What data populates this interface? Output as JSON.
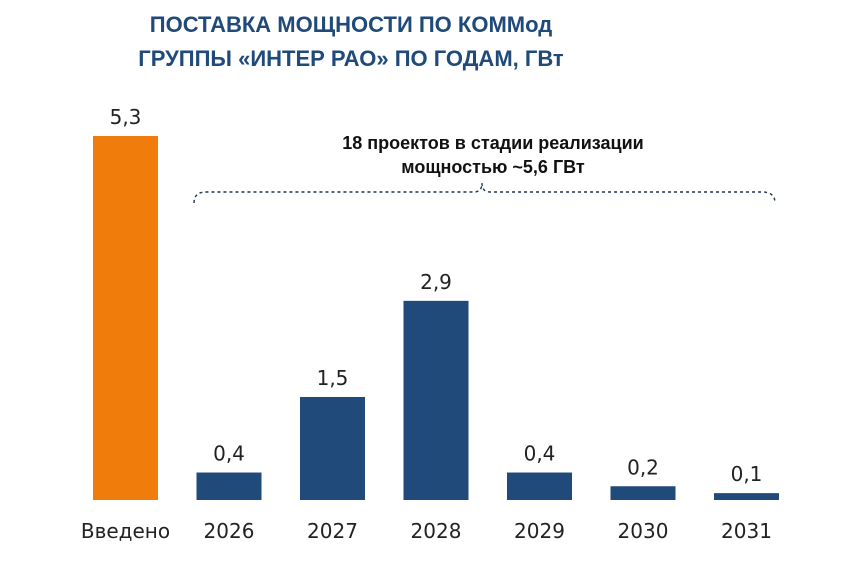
{
  "chart_data": {
    "type": "bar",
    "title_line1": "ПОСТАВКА МОЩНОСТИ ПО КОММод",
    "title_line2": "ГРУППЫ «ИНТЕР РАО» ПО ГОДАМ, ГВт",
    "categories": [
      "Введено",
      "2026",
      "2027",
      "2028",
      "2029",
      "2030",
      "2031"
    ],
    "values": [
      5.3,
      0.4,
      1.5,
      2.9,
      0.4,
      0.2,
      0.1
    ],
    "value_labels": [
      "5,3",
      "0,4",
      "1,5",
      "2,9",
      "0,4",
      "0,2",
      "0,1"
    ],
    "ylim": [
      0,
      5.3
    ],
    "annotation_line1": "18 проектов в стадии реализации",
    "annotation_line2": "мощностью ~5,6 ГВт",
    "grid": false,
    "legend": "none"
  },
  "colors": {
    "introduced": "#f07c0c",
    "planned": "#1f4a7a",
    "title": "#1f4a7a"
  }
}
